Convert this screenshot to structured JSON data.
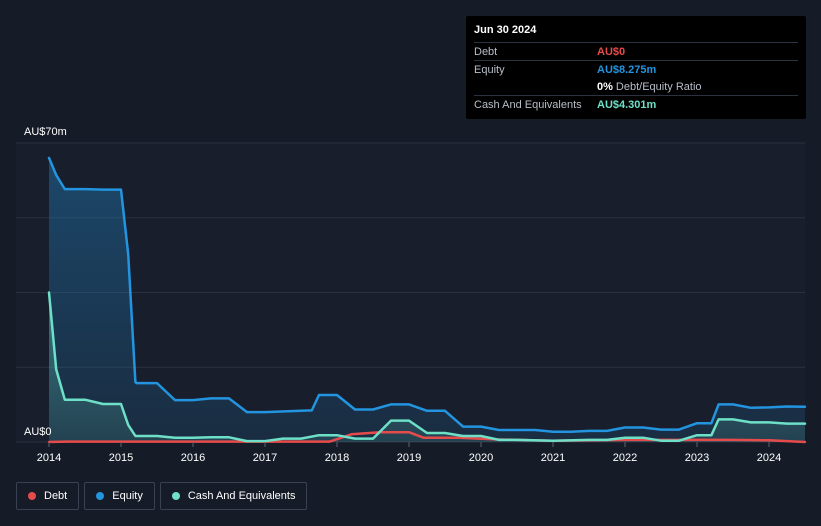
{
  "tooltip": {
    "date": "Jun 30 2024",
    "rows": [
      {
        "label": "Debt",
        "value": "AU$0",
        "color": "#e64b4b"
      },
      {
        "label": "Equity",
        "value": "AU$8.275m",
        "color": "#2394df"
      },
      {
        "label": "",
        "value": "0%",
        "extra": "Debt/Equity Ratio",
        "color": "#ffffff"
      },
      {
        "label": "Cash And Equivalents",
        "value": "AU$4.301m",
        "color": "#6ee0c8"
      }
    ]
  },
  "legend": [
    {
      "label": "Debt",
      "color": "#e64b4b"
    },
    {
      "label": "Equity",
      "color": "#2394df"
    },
    {
      "label": "Cash And Equivalents",
      "color": "#6ee0c8"
    }
  ],
  "chart_data": {
    "type": "area",
    "ylim": [
      0,
      70
    ],
    "y_top_label": "AU$70m",
    "y_bottom_label": "AU$0",
    "x_ticks": [
      "2014",
      "2015",
      "2016",
      "2017",
      "2018",
      "2019",
      "2020",
      "2021",
      "2022",
      "2023",
      "2024"
    ],
    "series": [
      {
        "name": "Debt",
        "color": "#e64b4b",
        "points": [
          [
            2014.0,
            0
          ],
          [
            2014.25,
            0.1
          ],
          [
            2015.0,
            0.1
          ],
          [
            2016.0,
            0.1
          ],
          [
            2017.0,
            0.1
          ],
          [
            2017.9,
            0.1
          ],
          [
            2018.2,
            1.8
          ],
          [
            2018.6,
            2.3
          ],
          [
            2019.0,
            2.3
          ],
          [
            2019.2,
            1.0
          ],
          [
            2019.7,
            1.0
          ],
          [
            2020.2,
            0.6
          ],
          [
            2021.0,
            0.3
          ],
          [
            2022.0,
            0.5
          ],
          [
            2022.6,
            0.5
          ],
          [
            2023.0,
            0.5
          ],
          [
            2023.5,
            0.5
          ],
          [
            2024.0,
            0.4
          ],
          [
            2024.5,
            0
          ]
        ]
      },
      {
        "name": "Equity",
        "color": "#2394df",
        "points": [
          [
            2014.0,
            66.5
          ],
          [
            2014.1,
            62.5
          ],
          [
            2014.22,
            59.2
          ],
          [
            2014.5,
            59.2
          ],
          [
            2014.75,
            59.1
          ],
          [
            2015.0,
            59.1
          ],
          [
            2015.1,
            44.0
          ],
          [
            2015.2,
            14.0
          ],
          [
            2015.22,
            13.8
          ],
          [
            2015.5,
            13.8
          ],
          [
            2015.75,
            9.8
          ],
          [
            2016.0,
            9.8
          ],
          [
            2016.25,
            10.2
          ],
          [
            2016.5,
            10.2
          ],
          [
            2016.75,
            7.0
          ],
          [
            2017.0,
            7.0
          ],
          [
            2017.5,
            7.3
          ],
          [
            2017.65,
            7.4
          ],
          [
            2017.75,
            11.0
          ],
          [
            2018.0,
            11.0
          ],
          [
            2018.25,
            7.6
          ],
          [
            2018.5,
            7.6
          ],
          [
            2018.75,
            8.8
          ],
          [
            2019.0,
            8.8
          ],
          [
            2019.25,
            7.3
          ],
          [
            2019.5,
            7.3
          ],
          [
            2019.75,
            3.6
          ],
          [
            2020.0,
            3.6
          ],
          [
            2020.25,
            2.8
          ],
          [
            2020.75,
            2.8
          ],
          [
            2021.0,
            2.4
          ],
          [
            2021.25,
            2.4
          ],
          [
            2021.5,
            2.6
          ],
          [
            2021.75,
            2.6
          ],
          [
            2022.0,
            3.4
          ],
          [
            2022.25,
            3.4
          ],
          [
            2022.5,
            2.9
          ],
          [
            2022.75,
            2.9
          ],
          [
            2023.0,
            4.4
          ],
          [
            2023.2,
            4.4
          ],
          [
            2023.3,
            8.8
          ],
          [
            2023.5,
            8.8
          ],
          [
            2023.75,
            8.0
          ],
          [
            2024.0,
            8.1
          ],
          [
            2024.25,
            8.3
          ],
          [
            2024.5,
            8.275
          ]
        ]
      },
      {
        "name": "Cash And Equivalents",
        "color": "#6ee0c8",
        "points": [
          [
            2014.0,
            35.0
          ],
          [
            2014.1,
            17.0
          ],
          [
            2014.22,
            9.9
          ],
          [
            2014.5,
            9.9
          ],
          [
            2014.75,
            8.9
          ],
          [
            2015.0,
            8.9
          ],
          [
            2015.1,
            4.0
          ],
          [
            2015.2,
            1.4
          ],
          [
            2015.5,
            1.4
          ],
          [
            2015.75,
            1.0
          ],
          [
            2016.0,
            1.0
          ],
          [
            2016.25,
            1.1
          ],
          [
            2016.5,
            1.1
          ],
          [
            2016.75,
            0.2
          ],
          [
            2017.0,
            0.2
          ],
          [
            2017.25,
            0.8
          ],
          [
            2017.5,
            0.8
          ],
          [
            2017.75,
            1.6
          ],
          [
            2018.0,
            1.6
          ],
          [
            2018.25,
            0.8
          ],
          [
            2018.5,
            0.8
          ],
          [
            2018.75,
            5.0
          ],
          [
            2019.0,
            5.0
          ],
          [
            2019.25,
            2.1
          ],
          [
            2019.5,
            2.1
          ],
          [
            2019.75,
            1.4
          ],
          [
            2020.0,
            1.4
          ],
          [
            2020.25,
            0.5
          ],
          [
            2020.5,
            0.5
          ],
          [
            2021.0,
            0.3
          ],
          [
            2021.5,
            0.5
          ],
          [
            2021.75,
            0.5
          ],
          [
            2022.0,
            1.0
          ],
          [
            2022.25,
            1.0
          ],
          [
            2022.5,
            0.3
          ],
          [
            2022.75,
            0.3
          ],
          [
            2023.0,
            1.6
          ],
          [
            2023.2,
            1.6
          ],
          [
            2023.3,
            5.3
          ],
          [
            2023.5,
            5.3
          ],
          [
            2023.75,
            4.6
          ],
          [
            2024.0,
            4.6
          ],
          [
            2024.25,
            4.3
          ],
          [
            2024.5,
            4.301
          ]
        ]
      }
    ]
  }
}
